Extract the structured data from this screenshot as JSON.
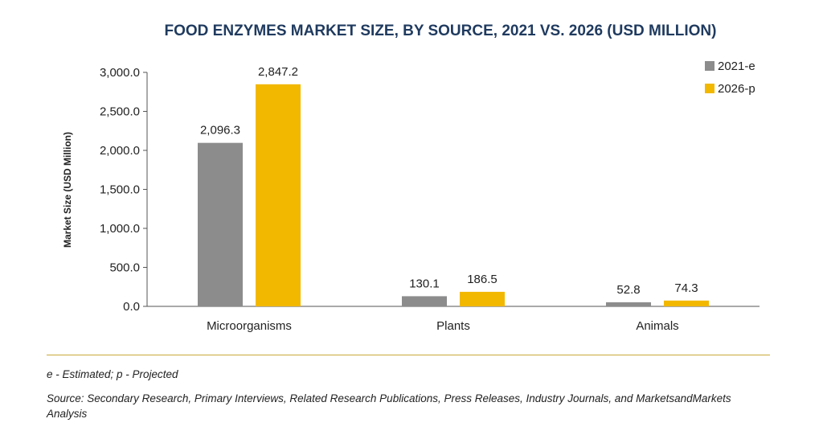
{
  "chart_data": {
    "type": "bar",
    "title": "FOOD ENZYMES MARKET SIZE, BY SOURCE, 2021 VS. 2026 (USD MILLION)",
    "xlabel": "",
    "ylabel": "Market Size (USD Million)",
    "categories": [
      "Microorganisms",
      "Plants",
      "Animals"
    ],
    "series": [
      {
        "name": "2021-e",
        "values": [
          2096.3,
          130.1,
          52.8
        ],
        "labels": [
          "2,096.3",
          "130.1",
          "52.8"
        ],
        "color": "#8c8c8c"
      },
      {
        "name": "2026-p",
        "values": [
          2847.2,
          186.5,
          74.3
        ],
        "labels": [
          "2,847.2",
          "186.5",
          "74.3"
        ],
        "color": "#f2b800"
      }
    ],
    "ylim": [
      0,
      3000
    ],
    "yticks": [
      0,
      500,
      1000,
      1500,
      2000,
      2500,
      3000
    ],
    "ytick_labels": [
      "0.0",
      "500.0",
      "1,000.0",
      "1,500.0",
      "2,000.0",
      "2,500.0",
      "3,000.0"
    ],
    "grid": false,
    "legend_position": "top-right"
  },
  "footnotes": {
    "note": "e - Estimated; p - Projected",
    "source": "Source: Secondary Research, Primary Interviews, Related Research Publications, Press Releases, Industry Journals, and MarketsandMarkets Analysis"
  },
  "colors": {
    "title": "#1f3a5f",
    "rule": "#c9a93a"
  }
}
